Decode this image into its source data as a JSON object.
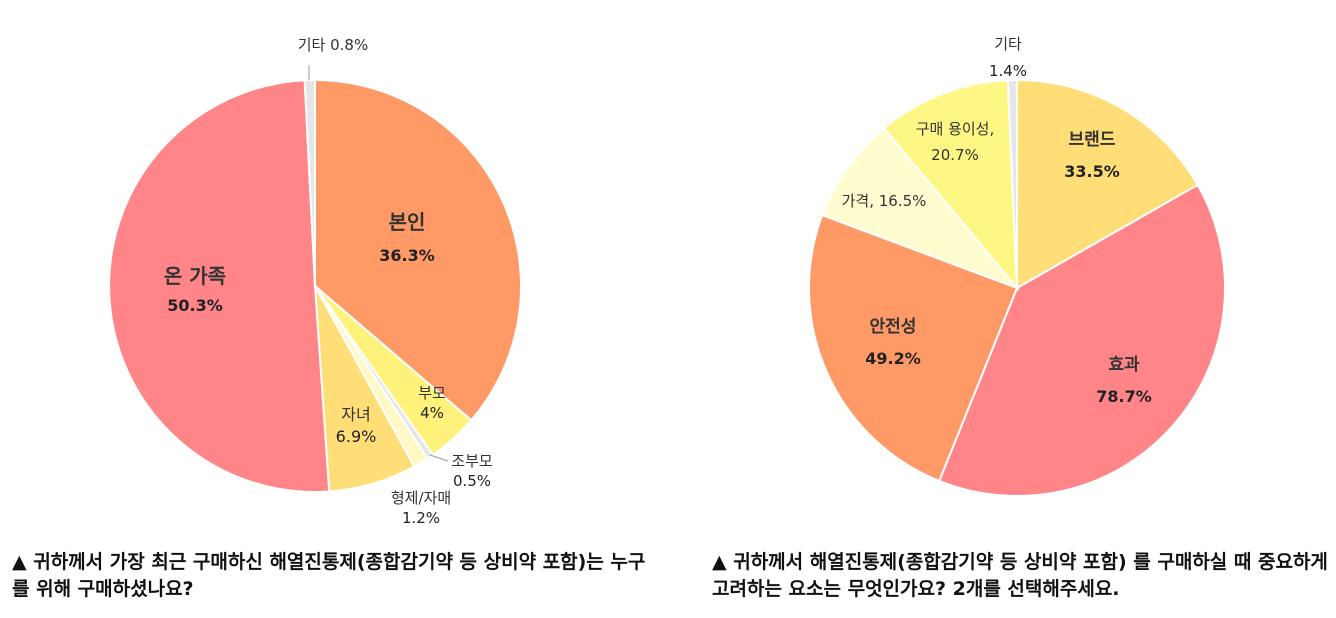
{
  "chart_data": [
    {
      "type": "pie",
      "title": "▲ 귀하께서 가장 최근 구매하신 해열진통제(종합감기약 등 상비약 포함)는 누구를 위해 구매하셨나요?",
      "slices": [
        {
          "name": "본인",
          "value": 36.3,
          "value_label": "36.3%",
          "color": "#FF9966"
        },
        {
          "name": "부모",
          "value": 4.0,
          "value_label": "4%",
          "color": "#FFF27A"
        },
        {
          "name": "조부모",
          "value": 0.5,
          "value_label": "0.5%",
          "color": "#E6E6E6"
        },
        {
          "name": "형제/자매",
          "value": 1.2,
          "value_label": "1.2%",
          "color": "#FFF9C4"
        },
        {
          "name": "자녀",
          "value": 6.9,
          "value_label": "6.9%",
          "color": "#FFDD77"
        },
        {
          "name": "온 가족",
          "value": 50.3,
          "value_label": "50.3%",
          "color": "#FF8589"
        },
        {
          "name": "기타",
          "value": 0.8,
          "value_label": "0.8%",
          "color": "#E6E6E6"
        }
      ]
    },
    {
      "type": "pie",
      "title": "▲ 귀하께서 해열진통제(종합감기약 등 상비약 포함) 를 구매하실 때 중요하게 고려하는 요소는 무엇인가요? 2개를 선택해주세요.",
      "slices": [
        {
          "name": "브랜드",
          "value": 33.5,
          "value_label": "33.5%",
          "color": "#FFDD77"
        },
        {
          "name": "효과",
          "value": 78.7,
          "value_label": "78.7%",
          "color": "#FF8589"
        },
        {
          "name": "안전성",
          "value": 49.2,
          "value_label": "49.2%",
          "color": "#FF9966"
        },
        {
          "name": "가격",
          "value": 16.5,
          "value_label": "16.5%",
          "color": "#FFFDD0"
        },
        {
          "name": "구매 용이성",
          "value": 20.7,
          "value_label": "20.7%",
          "color": "#FFF783"
        },
        {
          "name": "기타",
          "value": 1.4,
          "value_label": "1.4%",
          "color": "#E6E6E6"
        }
      ]
    }
  ],
  "captions": {
    "left": "▲ 귀하께서 가장 최근 구매하신 해열진통제(종합감기약 등 상비약 포함)는 누구를 위해 구매하셨나요?",
    "right": "▲ 귀하께서 해열진통제(종합감기약 등 상비약 포함) 를 구매하실 때 중요하게 고려하는 요소는 무엇인가요? 2개를 선택해주세요."
  }
}
